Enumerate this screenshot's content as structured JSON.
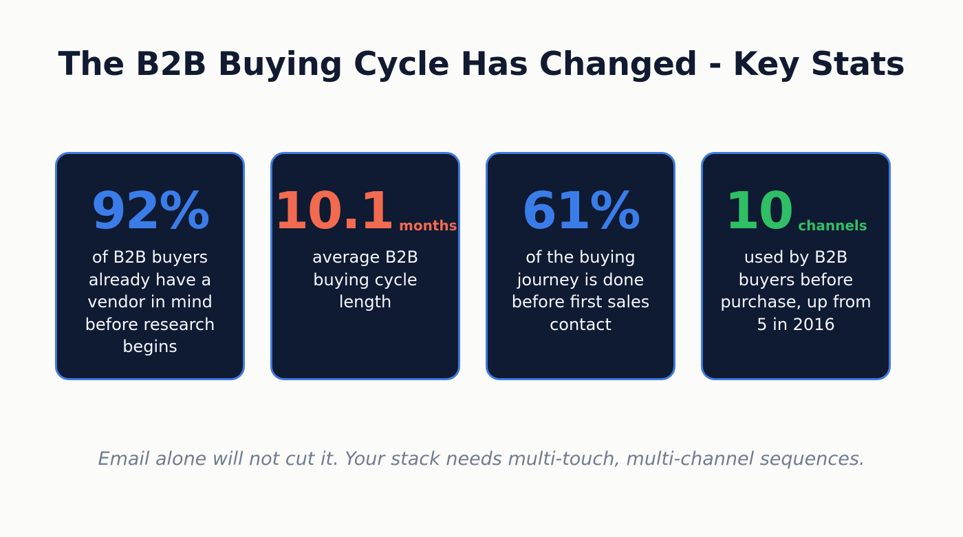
{
  "title": "The B2B Buying Cycle Has Changed - Key Stats",
  "colors": {
    "background": "#fbfbfa",
    "card_bg": "#0f1a33",
    "card_border": "#3f7be0",
    "blue": "#3b7de8",
    "orange": "#f26a4f",
    "green": "#2fbf64",
    "title": "#111a30",
    "footer": "#717c8f"
  },
  "cards": [
    {
      "value": "92%",
      "unit": "",
      "color": "#3b7de8",
      "description": "of B2B buyers already have a vendor in mind before research begins"
    },
    {
      "value": "10.1",
      "unit": "months",
      "color": "#f26a4f",
      "description": "average B2B buying cycle length"
    },
    {
      "value": "61%",
      "unit": "",
      "color": "#3b7de8",
      "description": "of the buying journey is done before first sales contact"
    },
    {
      "value": "10",
      "unit": "channels",
      "color": "#2fbf64",
      "description": "used by B2B buyers before purchase, up from 5 in 2016"
    }
  ],
  "footer": "Email alone will not cut it. Your stack needs multi-touch, multi-channel sequences."
}
